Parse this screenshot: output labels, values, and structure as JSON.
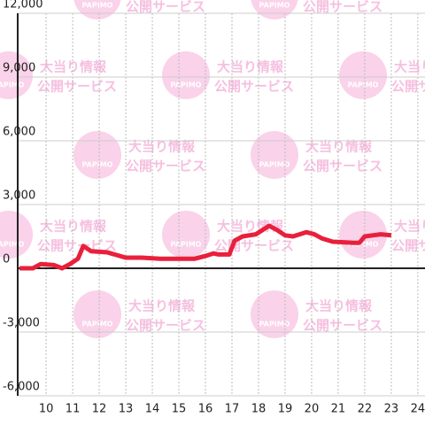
{
  "chart_data": {
    "type": "line",
    "x": [
      9.0,
      9.5,
      9.8,
      10.3,
      10.6,
      10.9,
      11.2,
      11.4,
      11.7,
      12.3,
      13.0,
      13.6,
      14.3,
      15.6,
      16.0,
      16.3,
      16.5,
      16.9,
      17.1,
      17.4,
      17.9,
      18.4,
      18.7,
      19.0,
      19.3,
      19.8,
      20.1,
      20.4,
      20.8,
      21.6,
      21.8,
      22.0,
      22.3,
      22.6,
      23.0
    ],
    "values": [
      0,
      0,
      200,
      150,
      0,
      200,
      450,
      1050,
      800,
      750,
      500,
      500,
      450,
      450,
      580,
      700,
      650,
      650,
      1300,
      1500,
      1600,
      2000,
      1800,
      1550,
      1500,
      1700,
      1600,
      1400,
      1250,
      1200,
      1200,
      1500,
      1550,
      1600,
      1550
    ],
    "color": "#e8203c",
    "xlim": [
      8.93,
      24.27
    ],
    "xticks": [
      10,
      11,
      12,
      13,
      14,
      15,
      16,
      17,
      18,
      19,
      20,
      21,
      22,
      23,
      24
    ],
    "ylim": [
      -6000,
      12000
    ],
    "yticks": [
      {
        "value": -6000,
        "label": "-6,000"
      },
      {
        "value": -3000,
        "label": "-3,000"
      },
      0,
      {
        "value": 3000,
        "label": "3,000"
      },
      {
        "value": 6000,
        "label": "6,000"
      },
      {
        "value": 9000,
        "label": "9,000"
      },
      {
        "value": 12000,
        "label": "12,000"
      }
    ],
    "grid": true
  },
  "watermark": {
    "logo": "PAPIMO",
    "line1": "大当り情報",
    "line2": "公開サービス"
  }
}
